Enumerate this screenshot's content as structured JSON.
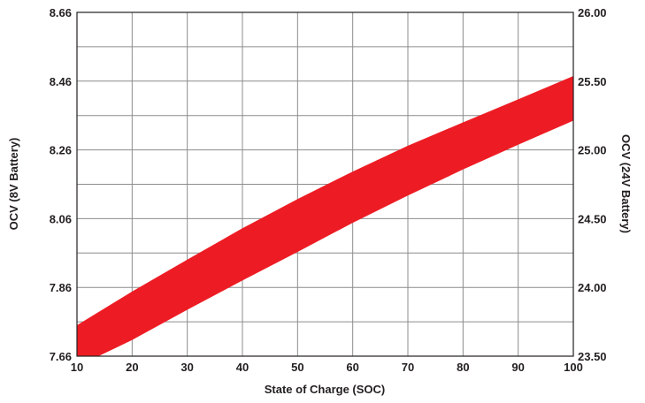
{
  "chart_data": {
    "type": "area",
    "xlabel": "State of Charge (SOC)",
    "ylabel": "OCV (8V Battery)",
    "y2label": "OCV (24V Battery)",
    "xlim": [
      10,
      100
    ],
    "ylim": [
      7.66,
      8.66
    ],
    "y2lim": [
      23.5,
      26.0
    ],
    "grid": true,
    "x_ticks": [
      "10",
      "20",
      "30",
      "40",
      "50",
      "60",
      "70",
      "80",
      "90",
      "100"
    ],
    "y_ticks": [
      "7.66",
      "7.86",
      "8.06",
      "8.26",
      "8.46",
      "8.66"
    ],
    "y2_ticks": [
      "23.50",
      "24.00",
      "24.50",
      "25.00",
      "25.50",
      "26.00"
    ],
    "band_color": "#ed1c24",
    "series": [
      {
        "x": [
          10,
          20,
          30,
          40,
          50,
          60,
          70,
          80,
          90,
          100
        ],
        "upper": [
          7.75,
          7.848,
          7.941,
          8.032,
          8.117,
          8.197,
          8.272,
          8.34,
          8.407,
          8.475
        ],
        "lower": [
          7.63,
          7.707,
          7.795,
          7.88,
          7.963,
          8.048,
          8.127,
          8.203,
          8.275,
          8.345
        ]
      }
    ]
  }
}
